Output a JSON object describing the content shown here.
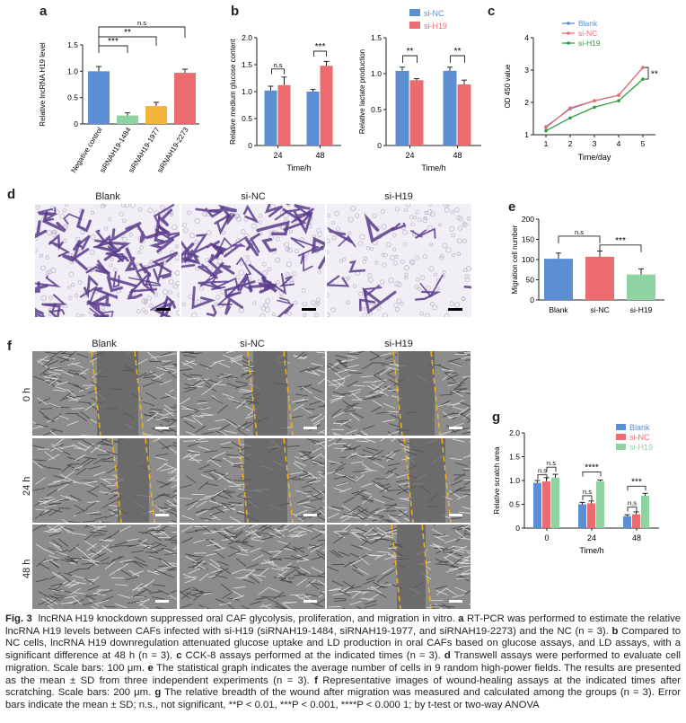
{
  "panels": {
    "a": "a",
    "b": "b",
    "c": "c",
    "d": "d",
    "e": "e",
    "f": "f",
    "g": "g"
  },
  "colors": {
    "blue": "#5b8fd1",
    "red": "#ec6b6f",
    "yellow": "#f3b53a",
    "green": "#8fd3a3",
    "green_line": "#2e9d3f",
    "stain": "#5b3b8c",
    "scratch_line": "#f0b11e"
  },
  "chart_data": [
    {
      "id": "a",
      "type": "bar",
      "ylabel": "Relative lncRNA H19 level",
      "ylim": [
        0,
        1.5
      ],
      "yticks": [
        "0",
        "0.5",
        "1.0",
        "1.5"
      ],
      "categories": [
        "Negative control",
        "siRNAH19-1484",
        "siRNAH19-1977",
        "siRNAH19-2273"
      ],
      "values": [
        1.0,
        0.16,
        0.34,
        0.97
      ],
      "errors": [
        0.09,
        0.05,
        0.07,
        0.07
      ],
      "bar_colors": [
        "#5b8fd1",
        "#8fd3a3",
        "#f3b53a",
        "#ec6b6f"
      ],
      "annotations": [
        "n.s",
        "**",
        "***"
      ]
    },
    {
      "id": "b1",
      "type": "bar",
      "xlabel": "Time/h",
      "ylabel": "Relative medium glucose content",
      "ylim": [
        0,
        2.0
      ],
      "yticks": [
        "0",
        "0.5",
        "1.0",
        "1.5",
        "2.0"
      ],
      "categories": [
        "24",
        "48"
      ],
      "series": [
        {
          "name": "si-NC",
          "values": [
            1.02,
            1.0
          ],
          "errors": [
            0.08,
            0.04
          ]
        },
        {
          "name": "si-H19",
          "values": [
            1.12,
            1.48
          ],
          "errors": [
            0.15,
            0.08
          ]
        }
      ],
      "annotations": [
        "n.s",
        "***"
      ]
    },
    {
      "id": "b2",
      "type": "bar",
      "xlabel": "Time/h",
      "ylabel": "Relative lactate production",
      "ylim": [
        0,
        1.5
      ],
      "yticks": [
        "0",
        "0.5",
        "1.0",
        "1.5"
      ],
      "categories": [
        "24",
        "48"
      ],
      "series": [
        {
          "name": "si-NC",
          "values": [
            1.04,
            1.04
          ],
          "errors": [
            0.05,
            0.05
          ]
        },
        {
          "name": "si-H19",
          "values": [
            0.91,
            0.85
          ],
          "errors": [
            0.02,
            0.06
          ]
        }
      ],
      "annotations": [
        "**",
        "**"
      ],
      "legend": [
        "si-NC",
        "si-H19"
      ]
    },
    {
      "id": "c",
      "type": "line",
      "xlabel": "Time/day",
      "ylabel": "OD 450 value",
      "x": [
        1,
        2,
        3,
        4,
        5
      ],
      "xticks": [
        "1",
        "2",
        "3",
        "4",
        "5"
      ],
      "ylim": [
        1,
        4
      ],
      "yticks": [
        "1",
        "2",
        "3",
        "4"
      ],
      "series": [
        {
          "name": "Blank",
          "values": [
            1.25,
            1.8,
            2.05,
            2.22,
            3.08
          ]
        },
        {
          "name": "si-NC",
          "values": [
            1.22,
            1.83,
            2.05,
            2.22,
            3.08
          ]
        },
        {
          "name": "si-H19",
          "values": [
            1.12,
            1.52,
            1.85,
            2.05,
            2.72
          ]
        }
      ],
      "annotations": [
        "**"
      ]
    },
    {
      "id": "e",
      "type": "bar",
      "ylabel": "Migration cell number",
      "ylim": [
        0,
        200
      ],
      "yticks": [
        "0",
        "50",
        "100",
        "150",
        "200"
      ],
      "categories": [
        "Blank",
        "si-NC",
        "si-H19"
      ],
      "values": [
        102,
        107,
        63
      ],
      "errors": [
        14,
        14,
        14
      ],
      "bar_colors": [
        "#5b8fd1",
        "#ec6b6f",
        "#8fd3a3"
      ],
      "annotations": [
        "n.s",
        "***"
      ]
    },
    {
      "id": "g",
      "type": "bar",
      "xlabel": "Time/h",
      "ylabel": "Relative scratch area",
      "ylim": [
        0,
        2.0
      ],
      "yticks": [
        "0",
        "0.5",
        "1.0",
        "1.5",
        "2.0"
      ],
      "categories": [
        "0",
        "24",
        "48"
      ],
      "series": [
        {
          "name": "Blank",
          "values": [
            0.95,
            0.5,
            0.25
          ],
          "errors": [
            0.05,
            0.04,
            0.03
          ]
        },
        {
          "name": "si-NC",
          "values": [
            0.98,
            0.52,
            0.29
          ],
          "errors": [
            0.08,
            0.05,
            0.05
          ]
        },
        {
          "name": "si-H19",
          "values": [
            1.06,
            0.98,
            0.68
          ],
          "errors": [
            0.07,
            0.03,
            0.05
          ]
        }
      ],
      "annotations": [
        "n.s",
        "n.s",
        "n.s",
        "****",
        "n.s",
        "***"
      ],
      "legend": [
        "Blank",
        "si-NC",
        "si-H19"
      ]
    }
  ],
  "d": {
    "labels": [
      "Blank",
      "si-NC",
      "si-H19"
    ]
  },
  "f": {
    "col_labels": [
      "Blank",
      "si-NC",
      "si-H19"
    ],
    "row_labels": [
      "0 h",
      "24 h",
      "48 h"
    ]
  },
  "caption": {
    "fig": "Fig. 3",
    "title": "lncRNA H19 knockdown suppressed oral CAF glycolysis, proliferation, and migration in vitro.",
    "a_l": "a",
    "a": "RT-PCR was performed to estimate the relative lncRNA H19 levels between CAFs infected with si-H19 (siRNAH19-1484, siRNAH19-1977, and siRNAH19-2273) and the NC (n = 3).",
    "b_l": "b",
    "b": "Compared to NC cells, lncRNA H19 downregulation attenuated glucose uptake and LD production in oral CAFs based on glucose assays, and LD assays, with a significant difference at 48 h (n = 3).",
    "c_l": "c",
    "c": "CCK-8 assays performed at the indicated times (n = 3).",
    "d_l": "d",
    "d": "Transwell assays were performed to evaluate cell migration. Scale bars: 100 μm.",
    "e_l": "e",
    "e": "The statistical graph indicates the average number of cells in 9 random high-power fields. The results are presented as the mean ± SD from three independent experiments (n = 3).",
    "f_l": "f",
    "f": "Representative images of wound-healing assays at the indicated times after scratching. Scale bars: 200 μm.",
    "g_l": "g",
    "g": "The relative breadth of the wound after migration was measured and calculated among the groups (n = 3). Error bars indicate the mean ± SD; n.s., not significant, **P < 0.01, ***P < 0.001, ****P < 0.000 1; by t-test or two-way ANOVA"
  }
}
